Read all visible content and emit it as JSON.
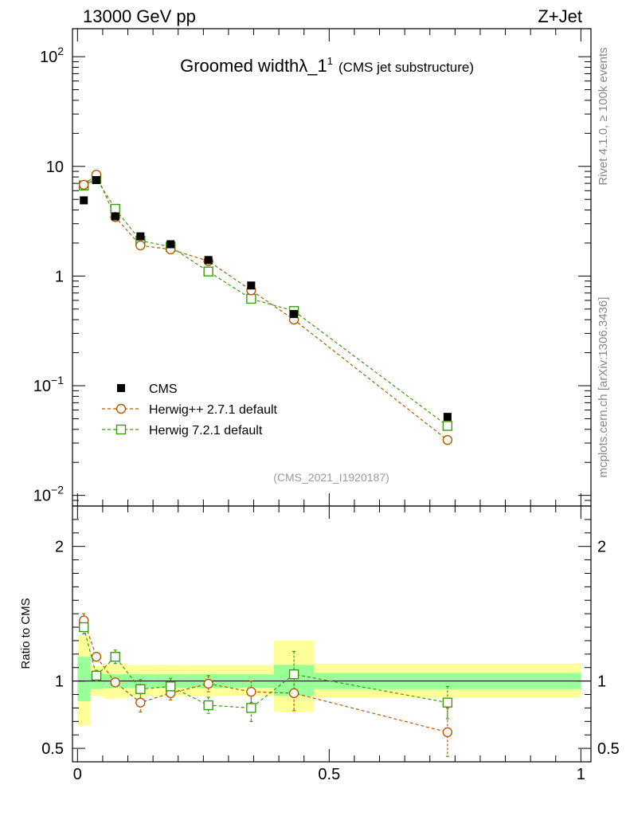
{
  "header": {
    "left": "13000 GeV pp",
    "right": "Z+Jet"
  },
  "side_labels": {
    "rivet": "Rivet 4.1.0, ≥ 100k events",
    "mcplots": "mcplots.cern.ch [arXiv:1306.3436]"
  },
  "chart_data": {
    "type": "scatter",
    "title": "Groomed widthλ_1",
    "title_sup": "1",
    "title_sub": "(CMS jet substructure)",
    "watermark": "(CMS_2021_I1920187)",
    "main": {
      "yscale": "log",
      "ylim": [
        0.008,
        180
      ],
      "y_ticks": [
        {
          "value": 0.01,
          "base": "10",
          "exp": "−2"
        },
        {
          "value": 0.1,
          "base": "10",
          "exp": "−1"
        },
        {
          "value": 1,
          "label": "1"
        },
        {
          "value": 10,
          "label": "10"
        },
        {
          "value": 100,
          "base": "10",
          "exp": "2"
        }
      ]
    },
    "xlim": [
      -0.01,
      1.02
    ],
    "x_ticks": [
      {
        "value": 0,
        "label": "0"
      },
      {
        "value": 0.5,
        "label": "0.5"
      },
      {
        "value": 1,
        "label": "1"
      }
    ],
    "ratio": {
      "ylabel": "Ratio to CMS",
      "ylim": [
        0.4,
        2.3
      ],
      "y_ticks": [
        {
          "value": 0.5,
          "label": "0.5"
        },
        {
          "value": 1,
          "label": "1"
        },
        {
          "value": 2,
          "label": "2"
        }
      ]
    },
    "legend": {
      "position": "bottom-left",
      "entries": [
        {
          "label": "CMS",
          "style": "data"
        },
        {
          "label": "Herwig++ 2.7.1 default",
          "style": "circle"
        },
        {
          "label": "Herwig 7.2.1 default",
          "style": "square"
        }
      ]
    },
    "bins": [
      {
        "lo": 0.0,
        "hi": 0.025
      },
      {
        "lo": 0.025,
        "hi": 0.05
      },
      {
        "lo": 0.05,
        "hi": 0.1
      },
      {
        "lo": 0.1,
        "hi": 0.15
      },
      {
        "lo": 0.15,
        "hi": 0.22
      },
      {
        "lo": 0.22,
        "hi": 0.3
      },
      {
        "lo": 0.3,
        "hi": 0.39
      },
      {
        "lo": 0.39,
        "hi": 0.47
      },
      {
        "lo": 0.47,
        "hi": 1.0
      }
    ],
    "bands": {
      "inner": [
        [
          0.85,
          1.18
        ],
        [
          0.94,
          1.06
        ],
        [
          0.95,
          1.05
        ],
        [
          0.95,
          1.05
        ],
        [
          0.95,
          1.05
        ],
        [
          0.95,
          1.05
        ],
        [
          0.95,
          1.05
        ],
        [
          0.89,
          1.12
        ],
        [
          0.94,
          1.06
        ]
      ],
      "outer": [
        [
          0.67,
          1.34
        ],
        [
          0.89,
          1.11
        ],
        [
          0.87,
          1.13
        ],
        [
          0.89,
          1.12
        ],
        [
          0.89,
          1.12
        ],
        [
          0.89,
          1.12
        ],
        [
          0.89,
          1.12
        ],
        [
          0.77,
          1.3
        ],
        [
          0.88,
          1.13
        ]
      ]
    },
    "x": [
      0.0125,
      0.0375,
      0.075,
      0.125,
      0.185,
      0.26,
      0.345,
      0.43,
      0.735
    ],
    "series": [
      {
        "name": "CMS",
        "color": "#000000",
        "marker": "square-filled",
        "values": [
          4.9,
          7.5,
          3.5,
          2.3,
          1.95,
          1.4,
          0.82,
          0.45,
          0.052
        ]
      },
      {
        "name": "Herwig++ 2.7.1 default",
        "color": "#b35a00",
        "marker": "circle-open",
        "values": [
          6.8,
          8.4,
          3.45,
          1.9,
          1.75,
          1.37,
          0.74,
          0.4,
          0.032
        ],
        "ratio": [
          1.45,
          1.18,
          0.99,
          0.84,
          0.91,
          0.98,
          0.92,
          0.91,
          0.62
        ],
        "ratio_err": [
          0.05,
          0.03,
          0.03,
          0.07,
          0.05,
          0.06,
          0.08,
          0.13,
          0.18
        ]
      },
      {
        "name": "Herwig 7.2.1 default",
        "color": "#3a9a10",
        "marker": "square-open",
        "values": [
          6.7,
          7.7,
          4.1,
          2.1,
          1.85,
          1.1,
          0.62,
          0.48,
          0.043
        ],
        "ratio": [
          1.4,
          1.04,
          1.18,
          0.94,
          0.96,
          0.82,
          0.8,
          1.05,
          0.84
        ],
        "ratio_err": [
          0.05,
          0.04,
          0.05,
          0.07,
          0.06,
          0.06,
          0.1,
          0.17,
          0.12
        ]
      }
    ]
  }
}
